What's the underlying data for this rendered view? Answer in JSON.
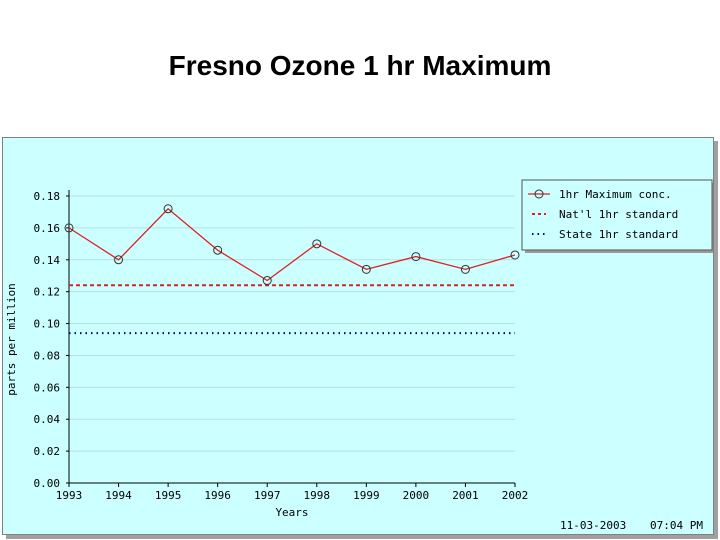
{
  "slide_title": "Fresno Ozone 1 hr Maximum",
  "footer": {
    "date": "11-03-2003",
    "time": "07:04 PM"
  },
  "colors": {
    "panel_bg": "#ccffff",
    "series": "#dd2222",
    "state_std": "#000066",
    "grid": "#b8e0e0"
  },
  "chart_data": {
    "type": "line",
    "title": "Fresno Ozone 1 hr Maximum",
    "xlabel": "Years",
    "ylabel": "parts per million",
    "x": [
      1993,
      1994,
      1995,
      1996,
      1997,
      1998,
      1999,
      2000,
      2001,
      2002
    ],
    "xticks": [
      "1993",
      "1994",
      "1995",
      "1996",
      "1997",
      "1998",
      "1999",
      "2000",
      "2001",
      "2002"
    ],
    "ylim": [
      0,
      0.18
    ],
    "yticks": [
      "0.00",
      "0.02",
      "0.04",
      "0.06",
      "0.08",
      "0.10",
      "0.12",
      "0.14",
      "0.16",
      "0.18"
    ],
    "series": [
      {
        "name": "1hr Maximum conc.",
        "values": [
          0.16,
          0.14,
          0.172,
          0.146,
          0.127,
          0.15,
          0.134,
          0.142,
          0.134,
          0.143
        ]
      }
    ],
    "reference_lines": [
      {
        "name": "Nat'l 1hr standard",
        "value": 0.124
      },
      {
        "name": "State 1hr standard",
        "value": 0.094
      }
    ],
    "legend": "top-right",
    "grid": true
  }
}
